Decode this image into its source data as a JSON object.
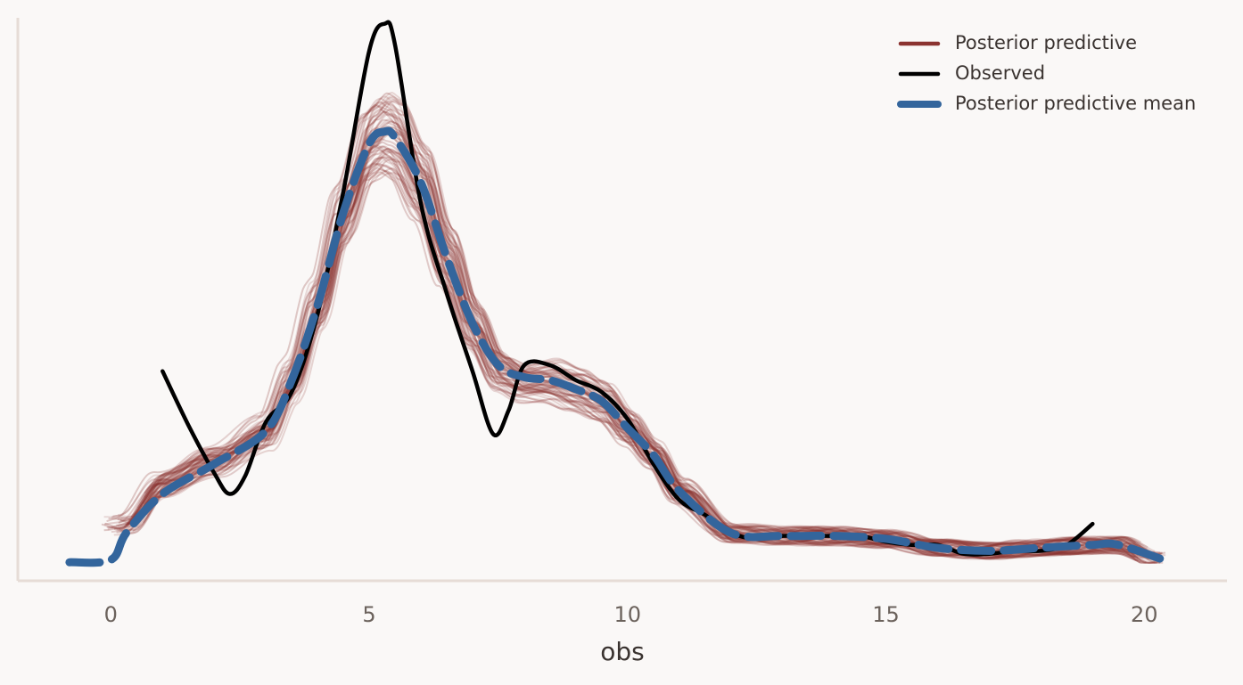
{
  "chart_data": {
    "type": "line",
    "title": "",
    "xlabel": "obs",
    "ylabel": "",
    "xlim": [
      -1.8,
      21.6
    ],
    "ylim": [
      -0.006,
      0.182
    ],
    "x_ticks": [
      "0",
      "5",
      "10",
      "15",
      "20"
    ],
    "y_ticks": [],
    "grid": false,
    "legend_position": "top-right",
    "colors": {
      "posterior_predictive": "#8b3330",
      "observed": "#000000",
      "posterior_predictive_mean": "#33659c",
      "axis": "#e6dcd6",
      "background": "#faf8f7"
    },
    "series": [
      {
        "name": "Posterior predictive",
        "style": "thin translucent lines (many draws)",
        "x": [
          0.3,
          1,
          2,
          3,
          3.5,
          4,
          4.5,
          5,
          5.3,
          5.5,
          6,
          6.5,
          7,
          7.5,
          8,
          8.5,
          9,
          9.5,
          10,
          10.5,
          11,
          12,
          13,
          14,
          15,
          16,
          17,
          18,
          19,
          19.5,
          20.2
        ],
        "y": [
          0.013,
          0.026,
          0.034,
          0.044,
          0.061,
          0.086,
          0.117,
          0.14,
          0.144,
          0.142,
          0.127,
          0.102,
          0.08,
          0.065,
          0.061,
          0.061,
          0.058,
          0.054,
          0.045,
          0.036,
          0.024,
          0.01,
          0.009,
          0.009,
          0.008,
          0.005,
          0.004,
          0.005,
          0.006,
          0.006,
          0.001
        ]
      },
      {
        "name": "Observed",
        "style": "solid black line",
        "x": [
          1,
          1.5,
          2,
          2.3,
          2.6,
          3,
          3.5,
          4,
          4.5,
          5,
          5.3,
          5.5,
          6,
          6.5,
          7,
          7.4,
          7.7,
          8,
          8.5,
          9,
          9.5,
          10,
          10.5,
          11,
          11.5,
          12,
          12.5,
          13,
          14,
          14.5,
          15,
          15.5,
          16,
          16.5,
          17,
          17.5,
          18,
          18.5,
          19
        ],
        "y": [
          0.064,
          0.046,
          0.03,
          0.023,
          0.029,
          0.047,
          0.057,
          0.083,
          0.124,
          0.171,
          0.18,
          0.173,
          0.12,
          0.09,
          0.064,
          0.043,
          0.051,
          0.066,
          0.066,
          0.061,
          0.057,
          0.048,
          0.033,
          0.021,
          0.016,
          0.01,
          0.008,
          0.009,
          0.009,
          0.009,
          0.007,
          0.006,
          0.006,
          0.003,
          0.003,
          0.004,
          0.004,
          0.006,
          0.013
        ]
      },
      {
        "name": "Posterior predictive mean",
        "style": "thick dashed line",
        "x": [
          -0.8,
          0,
          0.3,
          1,
          2,
          3,
          3.5,
          4,
          4.5,
          5,
          5.3,
          5.5,
          6,
          6.5,
          7,
          7.5,
          8,
          8.5,
          9,
          9.5,
          10,
          10.5,
          11,
          12,
          13,
          14,
          15,
          16,
          17,
          18,
          19,
          19.5,
          20.5
        ],
        "y": [
          0.0002,
          0.001,
          0.01,
          0.023,
          0.033,
          0.044,
          0.061,
          0.086,
          0.117,
          0.14,
          0.144,
          0.142,
          0.127,
          0.102,
          0.08,
          0.066,
          0.062,
          0.061,
          0.058,
          0.054,
          0.045,
          0.036,
          0.024,
          0.01,
          0.009,
          0.009,
          0.008,
          0.005,
          0.004,
          0.005,
          0.006,
          0.006,
          0.0002
        ]
      }
    ]
  }
}
